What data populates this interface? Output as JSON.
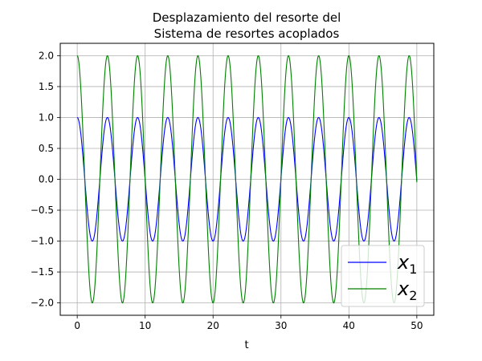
{
  "chart_data": {
    "type": "line",
    "title_lines": [
      "Desplazamiento del resorte del",
      "Sistema de resortes acoplados"
    ],
    "xlabel": "t",
    "ylabel": "",
    "xlim": [
      -2.5,
      52.5
    ],
    "ylim": [
      -2.2,
      2.2
    ],
    "xticks": [
      "0",
      "10",
      "20",
      "30",
      "40",
      "50"
    ],
    "yticks": [
      "2.0",
      "1.5",
      "1.0",
      "0.5",
      "0.0",
      "−0.5",
      "−1.0",
      "−1.5",
      "−2.0"
    ],
    "grid": true,
    "legend_position": "bottom-right",
    "x_range": [
      0,
      50
    ],
    "series": [
      {
        "name": "x₁",
        "legend_base": "x",
        "legend_sub": "1",
        "color": "#0000ff",
        "amplitude": 1.0,
        "angular_frequency": 1.4142,
        "x": [
          0,
          1.11,
          2.22,
          3.33,
          4.44,
          5.55,
          6.66,
          7.77,
          8.88,
          11.11,
          13.33,
          17.77,
          22.21,
          26.66,
          31.1,
          35.54,
          39.98,
          44.43,
          48.87,
          50
        ],
        "y": [
          1.0,
          0.0,
          -1.0,
          0.0,
          1.0,
          0.0,
          -1.0,
          0.0,
          1.0,
          0.0,
          1.0,
          1.0,
          1.0,
          1.0,
          1.0,
          1.0,
          1.0,
          1.0,
          1.0,
          -0.04
        ]
      },
      {
        "name": "x₂",
        "legend_base": "x",
        "legend_sub": "2",
        "color": "#008000",
        "amplitude": 2.0,
        "angular_frequency": 1.4142,
        "x": [
          0,
          1.11,
          2.22,
          3.33,
          4.44,
          8.88,
          13.33,
          17.77,
          22.21,
          26.66,
          31.1,
          35.54,
          39.98,
          44.43,
          48.87,
          50
        ],
        "y": [
          2.0,
          0.0,
          -2.0,
          0.0,
          2.0,
          2.0,
          2.0,
          2.0,
          2.0,
          2.0,
          2.0,
          2.0,
          2.0,
          2.0,
          2.0,
          -0.08
        ]
      }
    ]
  }
}
